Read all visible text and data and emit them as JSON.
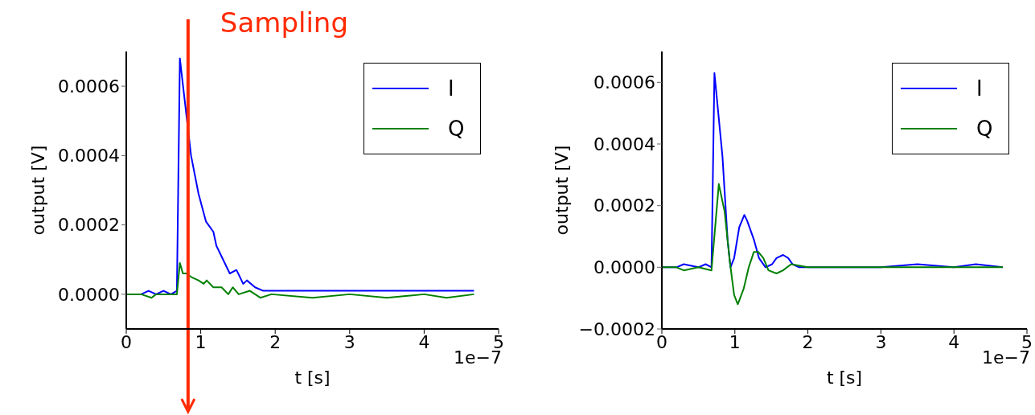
{
  "chart_data": [
    {
      "type": "line",
      "xlabel": "t [s]",
      "ylabel": "output [V]",
      "legend": "top right",
      "xlim": [
        0,
        5
      ],
      "xticks": [
        0,
        1,
        2,
        3,
        4,
        5
      ],
      "ylim": [
        -0.0001,
        0.0007
      ],
      "yticks": [
        {
          "value": 0,
          "label": "0.0000"
        },
        {
          "value": 0.0002,
          "label": "0.0002"
        },
        {
          "value": 0.0004,
          "label": "0.0004"
        },
        {
          "value": 0.0006,
          "label": "0.0006"
        }
      ],
      "annotations": [
        "1e−7"
      ],
      "ref_lines": [
        {
          "axis": "x",
          "value": 0.83,
          "label": "Sampling",
          "color": "#ff2a00"
        }
      ],
      "series": [
        {
          "name": "I",
          "color": "#0000ff",
          "x": [
            0,
            0.2,
            0.3,
            0.4,
            0.5,
            0.6,
            0.68,
            0.72,
            0.87,
            0.97,
            1.07,
            1.17,
            1.21,
            1.3,
            1.39,
            1.48,
            1.57,
            1.62,
            1.73,
            1.84,
            2,
            2.5,
            3,
            3.5,
            4,
            4.3,
            4.67
          ],
          "values": [
            0,
            0,
            1e-05,
            0,
            1e-05,
            0,
            1e-05,
            0.00068,
            0.0004,
            0.00029,
            0.00021,
            0.00018,
            0.00014,
            0.0001,
            6e-05,
            7e-05,
            3e-05,
            4e-05,
            2e-05,
            1e-05,
            1e-05,
            1e-05,
            1e-05,
            1e-05,
            1e-05,
            1e-05,
            1e-05
          ]
        },
        {
          "name": "Q",
          "color": "#008000",
          "x": [
            0,
            0.2,
            0.34,
            0.4,
            0.6,
            0.68,
            0.72,
            0.76,
            0.81,
            0.87,
            0.97,
            1.04,
            1.08,
            1.17,
            1.28,
            1.37,
            1.43,
            1.51,
            1.66,
            1.8,
            1.95,
            2.5,
            3,
            3.5,
            4,
            4.3,
            4.67
          ],
          "values": [
            0,
            0,
            -1e-05,
            0,
            0,
            0,
            9e-05,
            6e-05,
            6e-05,
            5e-05,
            4e-05,
            3e-05,
            4e-05,
            2e-05,
            2e-05,
            0,
            2e-05,
            0,
            1e-05,
            -1e-05,
            0,
            -1e-05,
            0,
            -1e-05,
            0,
            -1e-05,
            0
          ]
        }
      ]
    },
    {
      "type": "line",
      "xlabel": "t [s]",
      "ylabel": "output [V]",
      "legend": "top right",
      "xlim": [
        0,
        5
      ],
      "xticks": [
        0,
        1,
        2,
        3,
        4,
        5
      ],
      "ylim": [
        -0.0002,
        0.0007
      ],
      "yticks": [
        {
          "value": -0.0002,
          "label": "−0.0002"
        },
        {
          "value": 0,
          "label": "0.0000"
        },
        {
          "value": 0.0002,
          "label": "0.0002"
        },
        {
          "value": 0.0004,
          "label": "0.0004"
        },
        {
          "value": 0.0006,
          "label": "0.0006"
        }
      ],
      "annotations": [
        "1e−7"
      ],
      "series": [
        {
          "name": "I",
          "color": "#0000ff",
          "x": [
            0,
            0.2,
            0.3,
            0.5,
            0.6,
            0.68,
            0.72,
            0.83,
            0.9,
            0.94,
            0.99,
            1.06,
            1.13,
            1.17,
            1.26,
            1.33,
            1.42,
            1.51,
            1.57,
            1.66,
            1.73,
            1.79,
            1.88,
            2.5,
            3,
            3.5,
            4,
            4.3,
            4.67
          ],
          "values": [
            0,
            0,
            1e-05,
            0,
            1e-05,
            0,
            0.00063,
            0.00036,
            9e-05,
            0,
            3e-05,
            0.00013,
            0.00017,
            0.00015,
            9e-05,
            3e-05,
            0,
            1e-05,
            3e-05,
            4e-05,
            3e-05,
            1e-05,
            0,
            0,
            0,
            1e-05,
            0,
            1e-05,
            0
          ]
        },
        {
          "name": "Q",
          "color": "#008000",
          "x": [
            0,
            0.2,
            0.3,
            0.5,
            0.68,
            0.78,
            0.86,
            0.93,
            0.99,
            1.04,
            1.12,
            1.19,
            1.26,
            1.32,
            1.39,
            1.46,
            1.57,
            1.66,
            1.77,
            2,
            2.5,
            3,
            3.5,
            4,
            4.67
          ],
          "values": [
            0,
            0,
            -1e-05,
            0,
            -1e-05,
            0.00027,
            0.00018,
            2e-05,
            -9e-05,
            -0.00012,
            -7e-05,
            0,
            5e-05,
            5e-05,
            3e-05,
            -1e-05,
            -2e-05,
            -1e-05,
            1e-05,
            0,
            0,
            0,
            0,
            0,
            0
          ]
        }
      ]
    }
  ]
}
